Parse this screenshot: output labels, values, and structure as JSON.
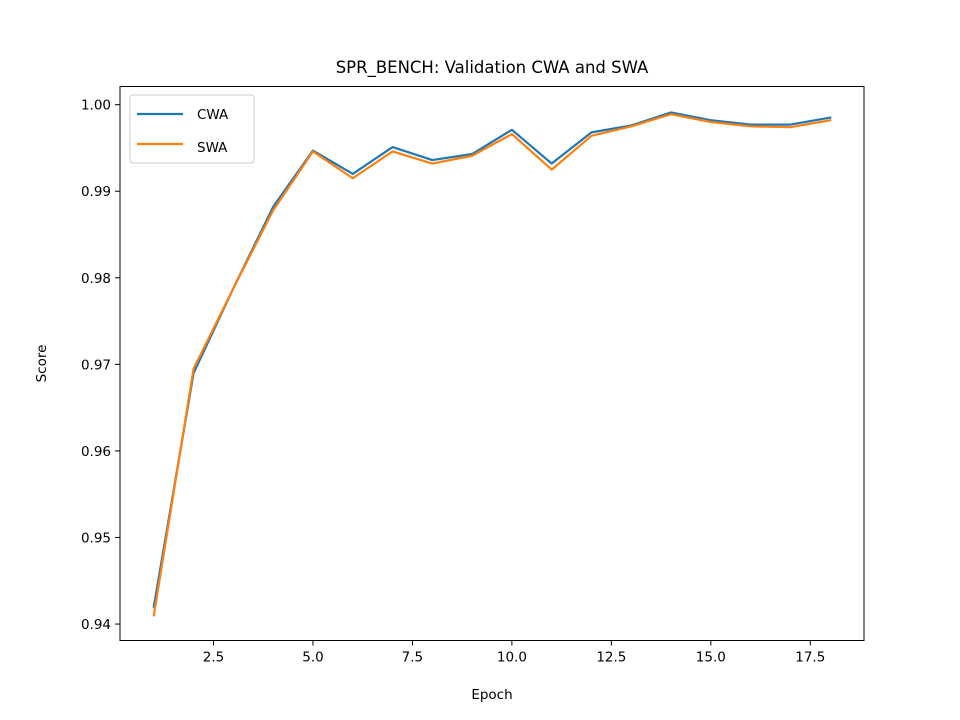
{
  "chart_data": {
    "type": "line",
    "title": "SPR_BENCH: Validation CWA and SWA",
    "xlabel": "Epoch",
    "ylabel": "Score",
    "xlim": [
      0.15,
      18.85
    ],
    "ylim": [
      0.9381,
      1.0021
    ],
    "xticks": [
      "2.5",
      "5.0",
      "7.5",
      "10.0",
      "12.5",
      "15.0",
      "17.5"
    ],
    "yticks": [
      "0.94",
      "0.95",
      "0.96",
      "0.97",
      "0.98",
      "0.99",
      "1.00"
    ],
    "grid": false,
    "legend_position": "upper left",
    "x": [
      1,
      2,
      3,
      4,
      5,
      6,
      7,
      8,
      9,
      10,
      11,
      12,
      13,
      14,
      15,
      16,
      17,
      18
    ],
    "series": [
      {
        "name": "CWA",
        "color": "#1f77b4",
        "values": [
          0.942,
          0.969,
          0.9788,
          0.9882,
          0.9947,
          0.992,
          0.9951,
          0.9936,
          0.9943,
          0.9971,
          0.9932,
          0.9968,
          0.9976,
          0.9991,
          0.9982,
          0.9977,
          0.9977,
          0.9985
        ]
      },
      {
        "name": "SWA",
        "color": "#ff7f0e",
        "values": [
          0.941,
          0.9695,
          0.9788,
          0.9878,
          0.9946,
          0.9915,
          0.9946,
          0.9932,
          0.9941,
          0.9966,
          0.9925,
          0.9964,
          0.9975,
          0.9989,
          0.998,
          0.9975,
          0.9974,
          0.9982
        ]
      }
    ]
  }
}
